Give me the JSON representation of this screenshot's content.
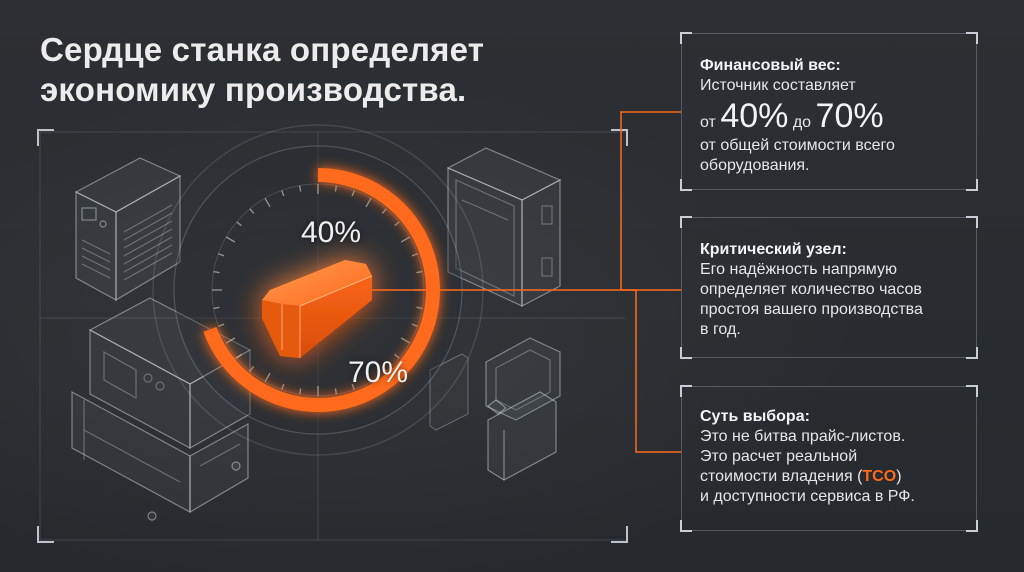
{
  "title": {
    "line1": "Сердце станка определяет",
    "line2": "экономику производства."
  },
  "gauge": {
    "label_40": "40%",
    "label_70": "70%",
    "accent_color": "#ff6a1a"
  },
  "cards": {
    "financial": {
      "title": "Финансовый вес:",
      "line1": "Источник составляет",
      "pre_from": "от",
      "value_from": "40%",
      "word_to": "до",
      "value_to": "70%",
      "line3": "от общей стоимости всего",
      "line4": "оборудования."
    },
    "critical": {
      "title": "Критический узел:",
      "line1": "Его надёжность напрямую",
      "line2": "определяет количество часов",
      "line3": "простоя вашего производства",
      "line4": "в год."
    },
    "choice": {
      "title": "Суть выбора:",
      "line1": "Это не битва прайс-листов.",
      "line2": "Это расчет реальной",
      "line3_pre": "стоимости владения (",
      "line3_accent": "TCO",
      "line3_post": ")",
      "line4": "и доступности сервиса в РФ."
    }
  },
  "icons": [
    "chiller-unit-icon",
    "electrical-cabinet-icon",
    "machine-cabinet-icon",
    "control-panel-terminal-icon",
    "power-module-core-icon"
  ]
}
